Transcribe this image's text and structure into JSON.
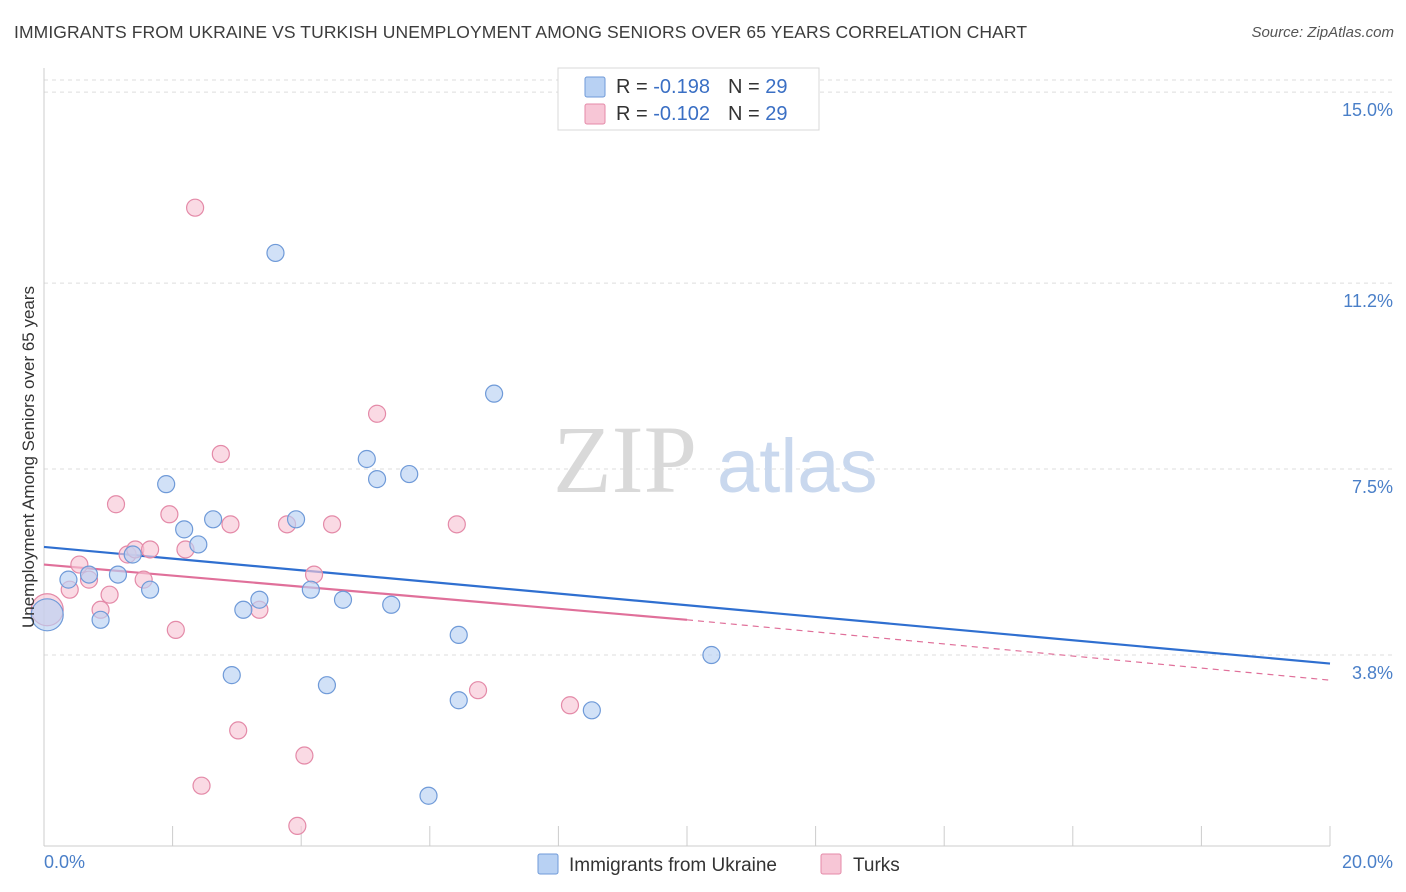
{
  "title": "IMMIGRANTS FROM UKRAINE VS TURKISH UNEMPLOYMENT AMONG SENIORS OVER 65 YEARS CORRELATION CHART",
  "source": "Source: ZipAtlas.com",
  "watermark": {
    "zip": "ZIP",
    "atlas": "atlas"
  },
  "colors": {
    "blue_fill": "#b8d1f3",
    "blue_stroke": "#6f9ad8",
    "blue_line": "#2f6fd0",
    "pink_fill": "#f7c6d6",
    "pink_stroke": "#e48aa8",
    "pink_line": "#e0709a",
    "grid": "#dddddd",
    "tick_text": "#4a7fc8"
  },
  "legend": {
    "items": [
      {
        "r_label": "R = ",
        "r_value": "-0.198",
        "n_label": "N = ",
        "n_value": "29"
      },
      {
        "r_label": "R = ",
        "r_value": "-0.102",
        "n_label": "N = ",
        "n_value": "29"
      }
    ]
  },
  "chart_data": {
    "type": "scatter",
    "title": "IMMIGRANTS FROM UKRAINE VS TURKISH UNEMPLOYMENT AMONG SENIORS OVER 65 YEARS CORRELATION CHART",
    "xlabel": "",
    "ylabel": "Unemployment Among Seniors over 65 years",
    "xlim": [
      0,
      20
    ],
    "ylim": [
      0,
      15.4
    ],
    "x_tick_labels": [
      "0.0%",
      "20.0%"
    ],
    "y_ticks": [
      3.8,
      7.5,
      11.2,
      15.0
    ],
    "y_tick_labels": [
      "3.8%",
      "7.5%",
      "11.2%",
      "15.0%"
    ],
    "grid": true,
    "legend_placement": "top-center",
    "series": [
      {
        "name": "Immigrants from Ukraine",
        "points": [
          [
            0.05,
            4.6
          ],
          [
            0.38,
            5.3
          ],
          [
            0.7,
            5.4
          ],
          [
            0.88,
            4.5
          ],
          [
            1.15,
            5.4
          ],
          [
            1.38,
            5.8
          ],
          [
            1.65,
            5.1
          ],
          [
            1.9,
            7.2
          ],
          [
            2.18,
            6.3
          ],
          [
            2.4,
            6.0
          ],
          [
            2.63,
            6.5
          ],
          [
            2.92,
            3.4
          ],
          [
            3.1,
            4.7
          ],
          [
            3.35,
            4.9
          ],
          [
            3.6,
            11.8
          ],
          [
            3.92,
            6.5
          ],
          [
            4.15,
            5.1
          ],
          [
            4.4,
            3.2
          ],
          [
            4.65,
            4.9
          ],
          [
            5.02,
            7.7
          ],
          [
            5.18,
            7.3
          ],
          [
            5.4,
            4.8
          ],
          [
            5.68,
            7.4
          ],
          [
            5.98,
            1.0
          ],
          [
            6.45,
            4.2
          ],
          [
            6.45,
            2.9
          ],
          [
            7.0,
            9.0
          ],
          [
            8.52,
            2.7
          ],
          [
            10.38,
            3.8
          ]
        ],
        "trend": {
          "x": [
            0,
            20
          ],
          "y": [
            5.95,
            3.63
          ]
        }
      },
      {
        "name": "Turks",
        "points": [
          [
            0.05,
            4.7
          ],
          [
            0.4,
            5.1
          ],
          [
            0.55,
            5.6
          ],
          [
            0.7,
            5.3
          ],
          [
            0.88,
            4.7
          ],
          [
            1.02,
            5.0
          ],
          [
            1.12,
            6.8
          ],
          [
            1.3,
            5.8
          ],
          [
            1.42,
            5.9
          ],
          [
            1.55,
            5.3
          ],
          [
            1.65,
            5.9
          ],
          [
            1.95,
            6.6
          ],
          [
            2.05,
            4.3
          ],
          [
            2.2,
            5.9
          ],
          [
            2.35,
            12.7
          ],
          [
            2.45,
            1.2
          ],
          [
            2.75,
            7.8
          ],
          [
            2.9,
            6.4
          ],
          [
            3.02,
            2.3
          ],
          [
            3.35,
            4.7
          ],
          [
            3.78,
            6.4
          ],
          [
            3.94,
            0.4
          ],
          [
            4.05,
            1.8
          ],
          [
            4.2,
            5.4
          ],
          [
            4.48,
            6.4
          ],
          [
            5.18,
            8.6
          ],
          [
            6.42,
            6.4
          ],
          [
            6.75,
            3.1
          ],
          [
            8.18,
            2.8
          ]
        ],
        "trend": {
          "x": [
            0,
            10
          ],
          "y": [
            5.6,
            4.5
          ]
        },
        "trend_extension": {
          "x": [
            10,
            20
          ],
          "y": [
            4.5,
            3.3
          ]
        }
      }
    ]
  },
  "bottom_legend": [
    "Immigrants from Ukraine",
    "Turks"
  ]
}
